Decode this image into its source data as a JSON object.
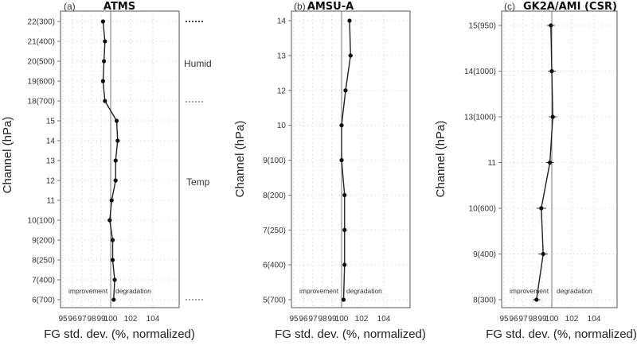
{
  "chart_data": [
    {
      "type": "line",
      "panel_label": "(a)",
      "title": "ATMS",
      "xlabel": "FG std. dev. (%, normalized)",
      "ylabel": "Channel (hPa)",
      "xlim": [
        95,
        105
      ],
      "xticks": [
        "95",
        "96",
        "97",
        "98",
        "99",
        "100",
        "102",
        "104"
      ],
      "categories": [
        "6(700)",
        "7(400)",
        "8(250)",
        "9(200)",
        "10(100)",
        "11",
        "12",
        "13",
        "14",
        "15",
        "18(700)",
        "19(600)",
        "20(500)",
        "21(400)",
        "22(300)"
      ],
      "series": [
        {
          "values": [
            100.3,
            100.4,
            100.2,
            100.2,
            99.9,
            100.1,
            100.5,
            100.5,
            100.7,
            100.6,
            99.4,
            99.2,
            99.3,
            99.4,
            99.2
          ]
        }
      ],
      "error_bars": [
        0.2,
        0.2,
        0.2,
        0.2,
        0.2,
        0.2,
        0.2,
        0.2,
        0.2,
        0.2,
        0.1,
        0.1,
        0.1,
        0.1,
        0.1
      ],
      "reference_line": 100,
      "region_labels": {
        "left": "improvement",
        "right": "degradation"
      },
      "group_labels": [
        "Humid",
        "Temp"
      ]
    },
    {
      "type": "line",
      "panel_label": "(b)",
      "title": "AMSU-A",
      "xlabel": "FG std. dev. (%, normalized)",
      "ylabel": "Channel (hPa)",
      "xlim": [
        95,
        105
      ],
      "xticks": [
        "95",
        "96",
        "97",
        "98",
        "99",
        "100",
        "102",
        "104"
      ],
      "categories": [
        "5(700)",
        "6(400)",
        "7(250)",
        "8(200)",
        "9(100)",
        "10",
        "12",
        "13",
        "14"
      ],
      "series": [
        {
          "values": [
            100.2,
            100.3,
            100.3,
            100.3,
            100.0,
            100.0,
            100.4,
            100.9,
            100.8
          ]
        }
      ],
      "error_bars": [
        0.1,
        0.1,
        0.1,
        0.1,
        0.1,
        0.1,
        0.1,
        0.2,
        0.2
      ],
      "reference_line": 100,
      "region_labels": {
        "left": "improvement",
        "right": "degradation"
      }
    },
    {
      "type": "line",
      "panel_label": "(c)",
      "title": "GK2A/AMI (CSR)",
      "xlabel": "FG std. dev. (%, normalized)",
      "ylabel": "Channel (hPa)",
      "xlim": [
        95,
        105
      ],
      "xticks": [
        "95",
        "96",
        "97",
        "98",
        "99",
        "100",
        "102",
        "104"
      ],
      "categories": [
        "8(300)",
        "9(400)",
        "10(600)",
        "11",
        "13(1000)",
        "14(1000)",
        "15(950)"
      ],
      "series": [
        {
          "values": [
            98.4,
            99.1,
            98.9,
            99.8,
            100.1,
            100.0,
            99.9
          ]
        }
      ],
      "error_bars": [
        0.4,
        0.5,
        0.5,
        0.4,
        0.4,
        0.4,
        0.4
      ],
      "reference_line": 100,
      "region_labels": {
        "left": "improvement",
        "right": "degradation"
      }
    }
  ]
}
